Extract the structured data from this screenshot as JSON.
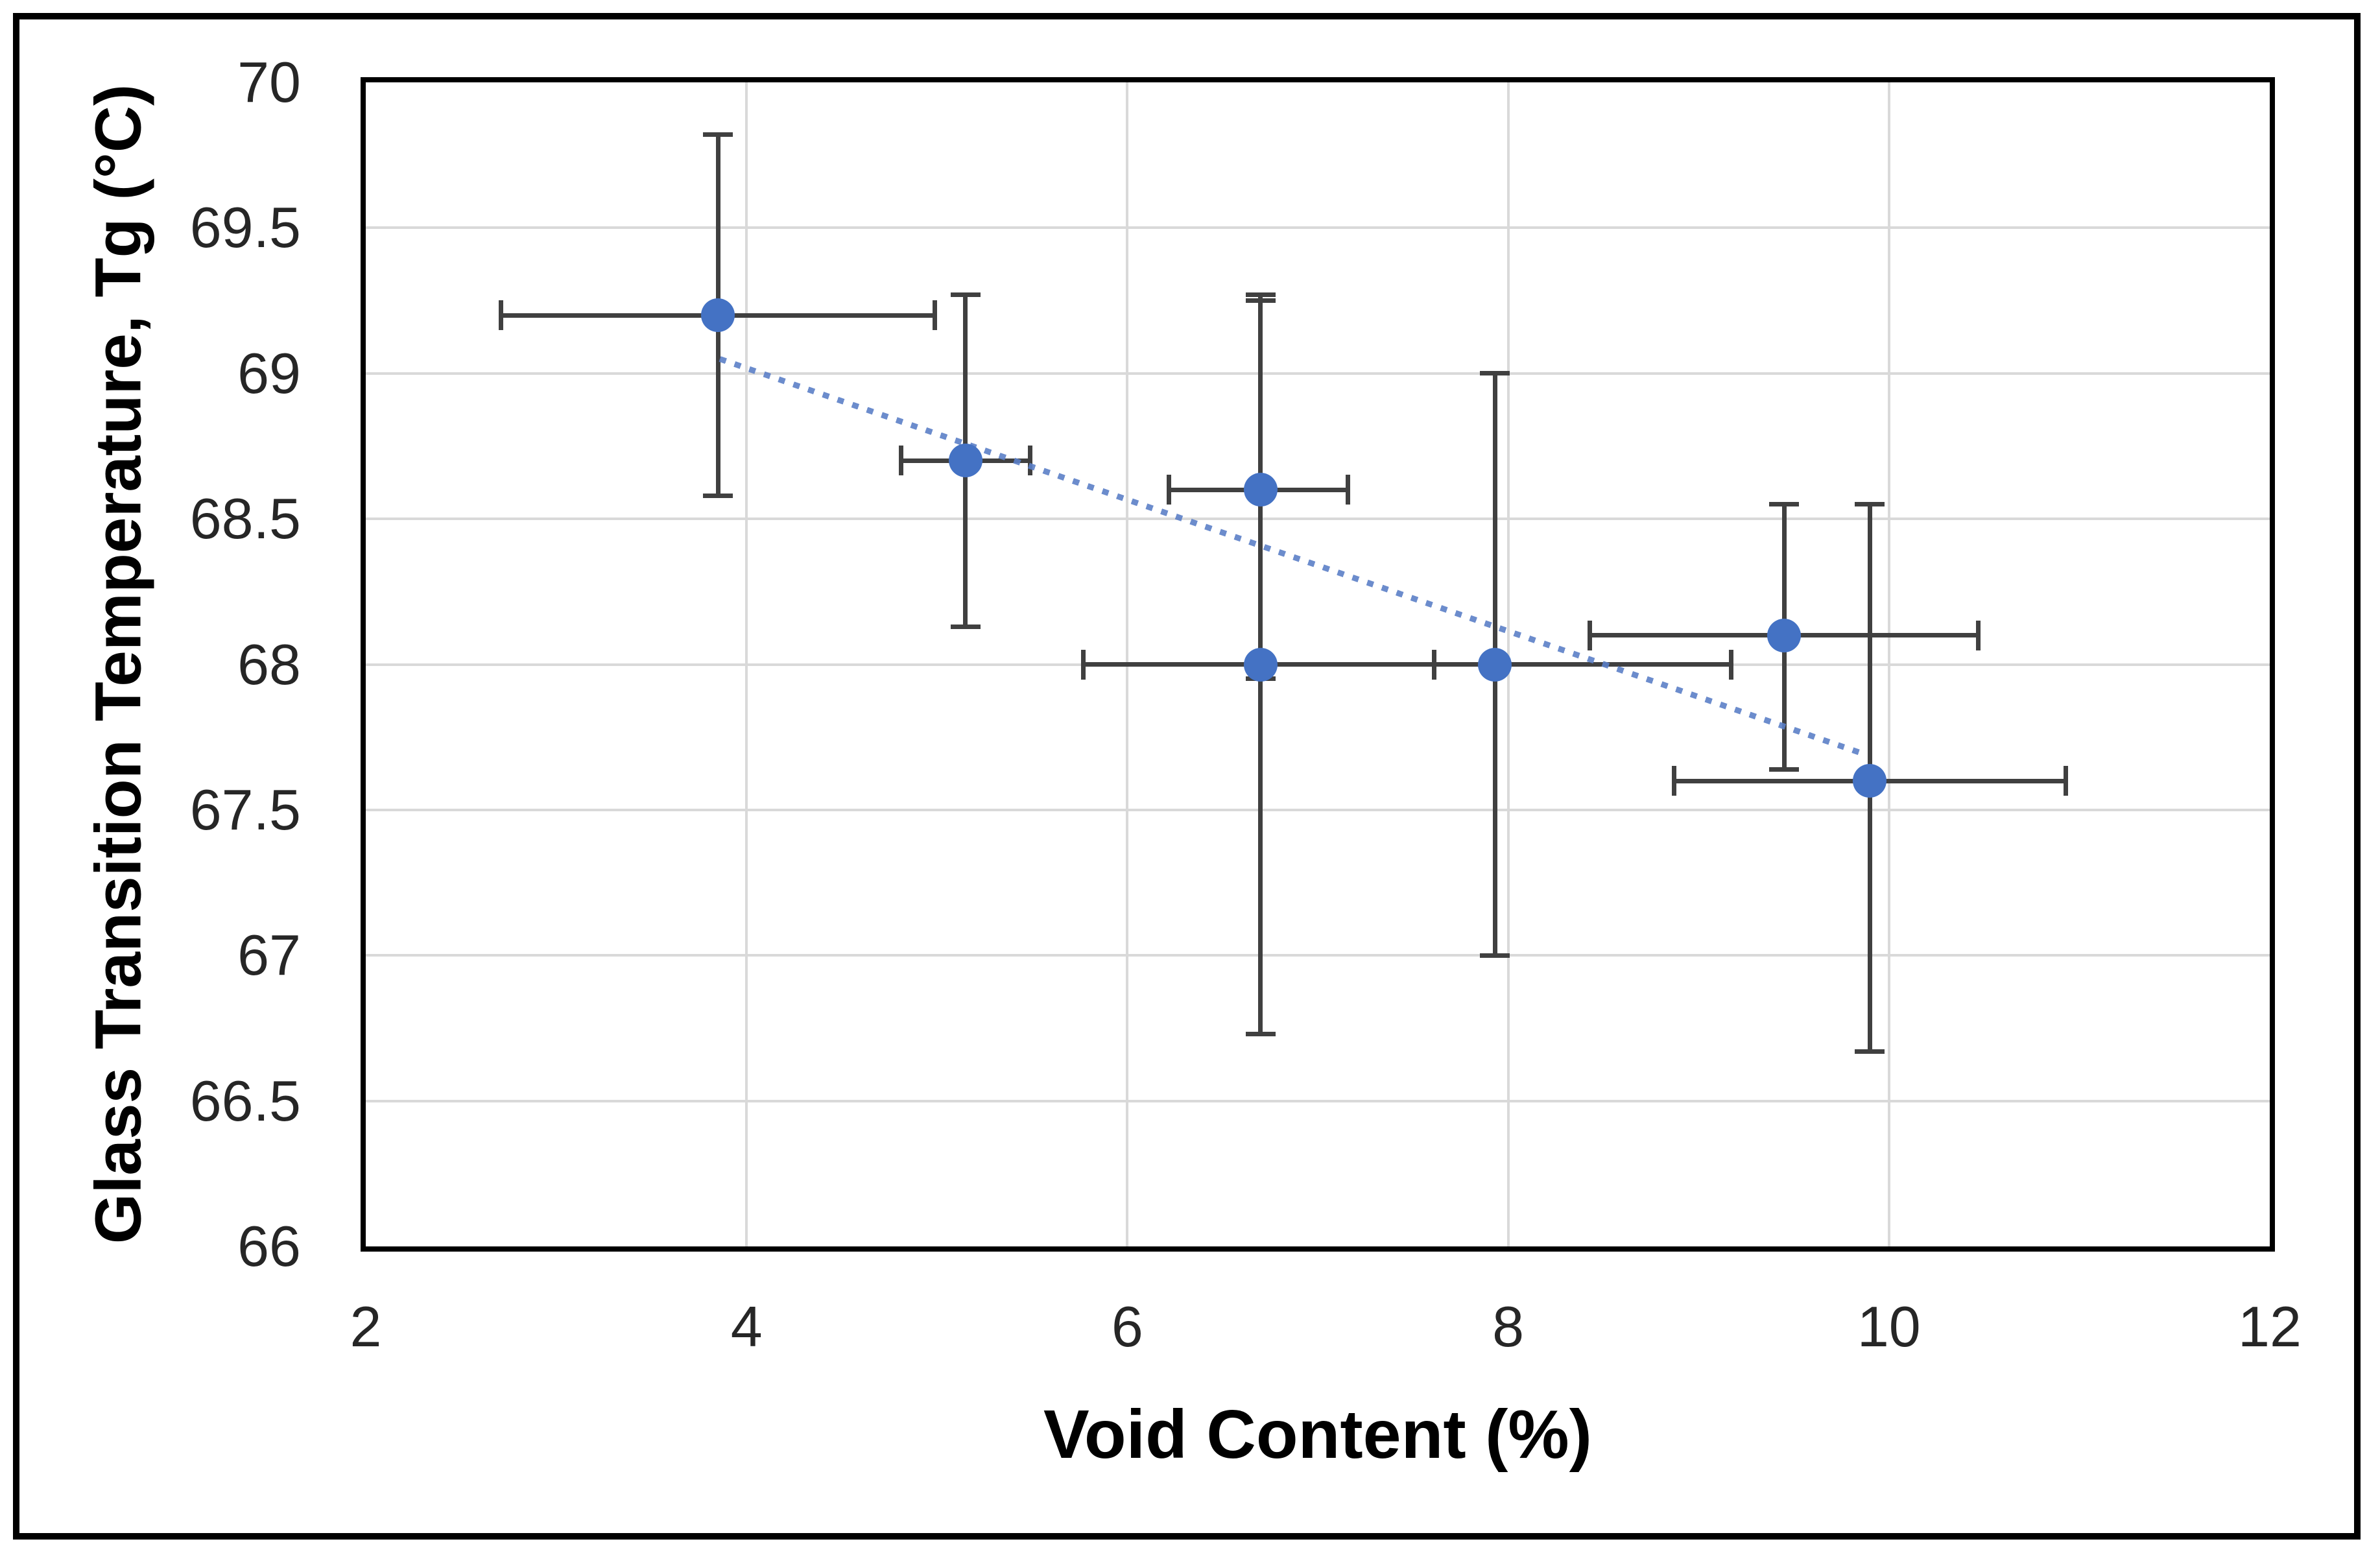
{
  "figure": {
    "background": "#ffffff",
    "frame_color": "#000000"
  },
  "chart_data": {
    "type": "scatter",
    "title": "",
    "xlabel": "Void Content (%)",
    "ylabel": "Glass Transition Temperature, Tg  (°C)",
    "xlim": [
      2,
      12
    ],
    "ylim": [
      66,
      70
    ],
    "x_ticks": [
      2,
      4,
      6,
      8,
      10,
      12
    ],
    "y_ticks": [
      66,
      66.5,
      67,
      67.5,
      68,
      68.5,
      69,
      69.5,
      70
    ],
    "grid": true,
    "legend_position": "none",
    "points": [
      {
        "x": 3.85,
        "y": 69.2,
        "x_lo": 2.71,
        "x_hi": 4.99,
        "y_lo": 68.58,
        "y_hi": 69.82
      },
      {
        "x": 5.15,
        "y": 68.7,
        "x_lo": 4.81,
        "x_hi": 5.49,
        "y_lo": 68.13,
        "y_hi": 69.27
      },
      {
        "x": 6.7,
        "y": 68.6,
        "x_lo": 6.22,
        "x_hi": 7.16,
        "y_lo": 67.95,
        "y_hi": 69.25
      },
      {
        "x": 6.7,
        "y": 68.0,
        "x_lo": 5.77,
        "x_hi": 7.61,
        "y_lo": 66.73,
        "y_hi": 69.27
      },
      {
        "x": 7.93,
        "y": 68.0,
        "x_lo": 7.61,
        "x_hi": 9.17,
        "y_lo": 67.0,
        "y_hi": 69.0
      },
      {
        "x": 9.45,
        "y": 68.1,
        "x_lo": 8.43,
        "x_hi": 10.47,
        "y_lo": 67.64,
        "y_hi": 68.55
      },
      {
        "x": 9.9,
        "y": 67.6,
        "x_lo": 8.87,
        "x_hi": 10.93,
        "y_lo": 66.67,
        "y_hi": 68.55
      }
    ],
    "trendline": {
      "x1": 3.86,
      "y1": 69.05,
      "x2": 9.88,
      "y2": 67.69,
      "style": "dotted"
    }
  },
  "colors": {
    "point": "#4472C4",
    "error_bar": "#404040",
    "gridline": "#d9d9d9",
    "trendline": "#5b7fc7",
    "tick_text": "#262626",
    "title_text": "#000000"
  }
}
